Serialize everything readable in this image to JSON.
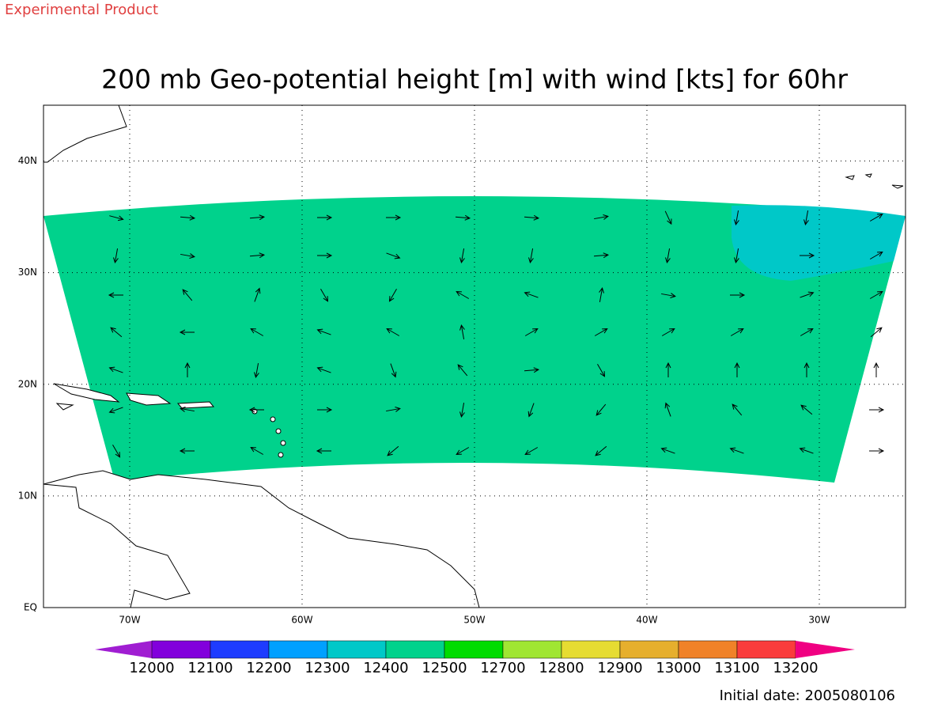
{
  "header": {
    "label": "Experimental Product"
  },
  "title": "200 mb Geo-potential height [m] with wind [kts] for 60hr",
  "map": {
    "lon_range": [
      -75,
      -25
    ],
    "lat_range": [
      0,
      45
    ],
    "lon_ticks": [
      {
        "value": -70,
        "label": "70W"
      },
      {
        "value": -60,
        "label": "60W"
      },
      {
        "value": -50,
        "label": "50W"
      },
      {
        "value": -40,
        "label": "40W"
      },
      {
        "value": -30,
        "label": "30W"
      }
    ],
    "lat_ticks": [
      {
        "value": 0,
        "label": "EQ"
      },
      {
        "value": 10,
        "label": "10N"
      },
      {
        "value": 20,
        "label": "20N"
      },
      {
        "value": 30,
        "label": "30N"
      },
      {
        "value": 40,
        "label": "40N"
      }
    ],
    "wind_directions": [
      [
        -15,
        -5,
        5,
        0,
        0,
        -5,
        -5,
        10,
        -65,
        -100,
        -100,
        30
      ],
      [
        -100,
        -10,
        5,
        0,
        -20,
        -100,
        -100,
        5,
        -100,
        -100,
        0,
        30
      ],
      [
        180,
        130,
        70,
        -60,
        -120,
        150,
        160,
        80,
        -10,
        0,
        20,
        30
      ],
      [
        140,
        180,
        150,
        160,
        150,
        100,
        30,
        30,
        30,
        30,
        30,
        40
      ],
      [
        160,
        90,
        -100,
        160,
        -70,
        130,
        5,
        -60,
        90,
        90,
        90,
        90
      ],
      [
        200,
        170,
        180,
        0,
        10,
        -100,
        -110,
        -130,
        110,
        130,
        140,
        0
      ],
      [
        -60,
        180,
        150,
        180,
        -140,
        -150,
        -150,
        -140,
        160,
        160,
        160,
        0
      ]
    ]
  },
  "colorbar": {
    "levels": [
      12000,
      12100,
      12200,
      12300,
      12400,
      12500,
      12700,
      12800,
      12900,
      13000,
      13100,
      13200
    ],
    "colors": [
      "#a01ed2",
      "#8200dc",
      "#1e3cff",
      "#00a0ff",
      "#00c8c8",
      "#00d28c",
      "#00dc00",
      "#a0e632",
      "#e6dc32",
      "#e6af2d",
      "#f08228",
      "#fa3c3c",
      "#f00082"
    ]
  },
  "footer": "Initial date: 2005080106"
}
